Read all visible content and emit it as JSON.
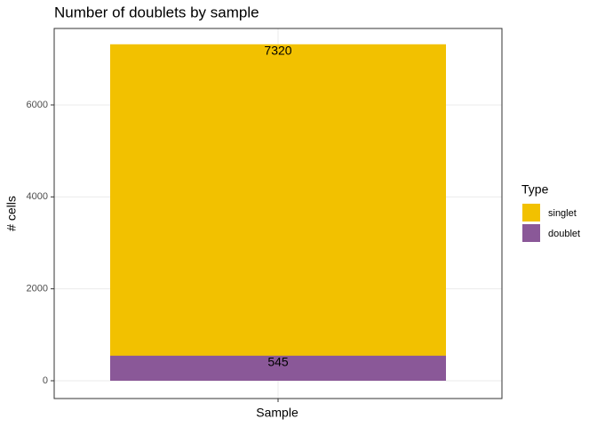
{
  "chart_data": {
    "type": "bar",
    "title": "Number of doublets by sample",
    "xlabel": "Sample",
    "ylabel": "# cells",
    "categories": [
      null
    ],
    "series": [
      {
        "name": "singlet",
        "color": "#f2c100",
        "values": [
          7320
        ]
      },
      {
        "name": "doublet",
        "color": "#8a5898",
        "values": [
          545
        ]
      }
    ],
    "legend_title": "Type",
    "legend": "right",
    "ylim": [
      -387,
      7664
    ],
    "yticks": [
      0,
      2000,
      4000,
      6000
    ],
    "grid": true
  }
}
